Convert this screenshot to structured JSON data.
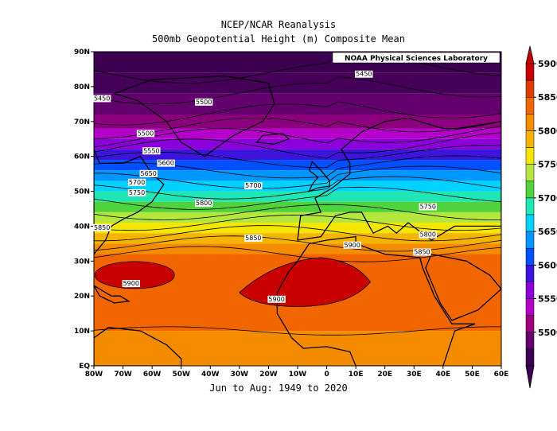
{
  "header": {
    "title": "NCEP/NCAR Reanalysis",
    "subtitle": "500mb Geopotential Height (m) Composite Mean",
    "footer": "Jun to Aug: 1949 to 2020"
  },
  "map": {
    "credit": "NOAA Physical Sciences Laboratory",
    "lat_ticks": [
      "90N",
      "80N",
      "70N",
      "60N",
      "50N",
      "40N",
      "30N",
      "20N",
      "10N",
      "EQ"
    ],
    "lon_ticks": [
      "80W",
      "70W",
      "60W",
      "50W",
      "40W",
      "30W",
      "20W",
      "10W",
      "0",
      "10E",
      "20E",
      "30E",
      "40E",
      "50E",
      "60E"
    ],
    "contour_labels": [
      "5450",
      "5450",
      "5500",
      "5500",
      "5550",
      "5600",
      "5650",
      "5700",
      "5750",
      "5700",
      "5800",
      "5850",
      "5850",
      "5900",
      "5900",
      "5900",
      "5750",
      "5800",
      "5850"
    ]
  },
  "colorbar": {
    "labels": [
      "5900",
      "5850",
      "5800",
      "5750",
      "5700",
      "5650",
      "5600",
      "5550",
      "5500"
    ],
    "colors": [
      "#c80000",
      "#e03c00",
      "#f26600",
      "#f58c00",
      "#f5b400",
      "#f5e600",
      "#b4e63c",
      "#50d23c",
      "#1ee6b4",
      "#00d2ff",
      "#0096ff",
      "#0050ff",
      "#3c14dc",
      "#8c00dc",
      "#b400c8",
      "#a0007d",
      "#64006e",
      "#3c0050"
    ]
  },
  "colors": {
    "land": "#000000",
    "background": "#ffffff"
  }
}
